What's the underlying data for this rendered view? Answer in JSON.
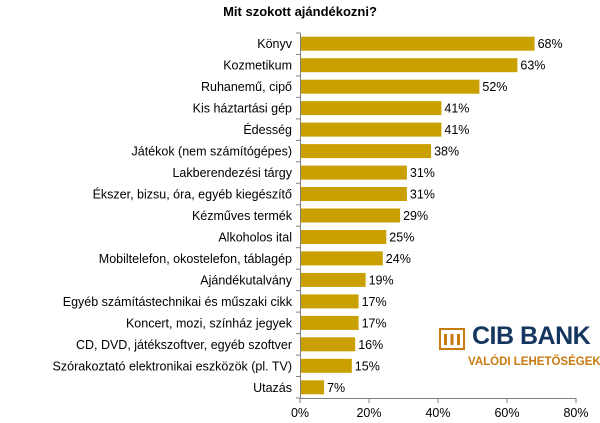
{
  "chart_data": {
    "type": "bar",
    "orientation": "horizontal",
    "title": "Mit szokott ajándékozni?",
    "categories": [
      "Könyv",
      "Kozmetikum",
      "Ruhanemű, cipő",
      "Kis háztartási gép",
      "Édesség",
      "Játékok (nem számítógépes)",
      "Lakberendezési tárgy",
      "Ékszer, bizsu, óra, egyéb kiegészítő",
      "Kézműves termék",
      "Alkoholos ital",
      "Mobiltelefon, okostelefon, táblagép",
      "Ajándékutalvány",
      "Egyéb számítástechnikai és műszaki cikk",
      "Koncert, mozi, színház jegyek",
      "CD, DVD, játékszoftver, egyéb szoftver",
      "Szórakoztató elektronikai eszközök (pl. TV)",
      "Utazás"
    ],
    "values": [
      68,
      63,
      52,
      41,
      41,
      38,
      31,
      31,
      29,
      25,
      24,
      19,
      17,
      17,
      16,
      15,
      7
    ],
    "value_labels": [
      "68%",
      "63%",
      "52%",
      "41%",
      "41%",
      "38%",
      "31%",
      "31%",
      "29%",
      "25%",
      "24%",
      "19%",
      "17%",
      "17%",
      "16%",
      "15%",
      "7%"
    ],
    "xlim": [
      0,
      80
    ],
    "x_ticks": [
      0,
      20,
      40,
      60,
      80
    ],
    "x_tick_labels": [
      "0%",
      "20%",
      "40%",
      "60%",
      "80%"
    ],
    "xlabel": "",
    "ylabel": "",
    "grid": false,
    "legend": "none",
    "bar_color": "#c9a000",
    "axis_color": "#808080"
  },
  "brand": {
    "name": "CIB BANK",
    "tagline": "VALÓDI LEHETŐSÉGEK",
    "name_color": "#14365f",
    "tagline_color": "#c97a10",
    "logo_icon": "cib-columns-icon"
  }
}
